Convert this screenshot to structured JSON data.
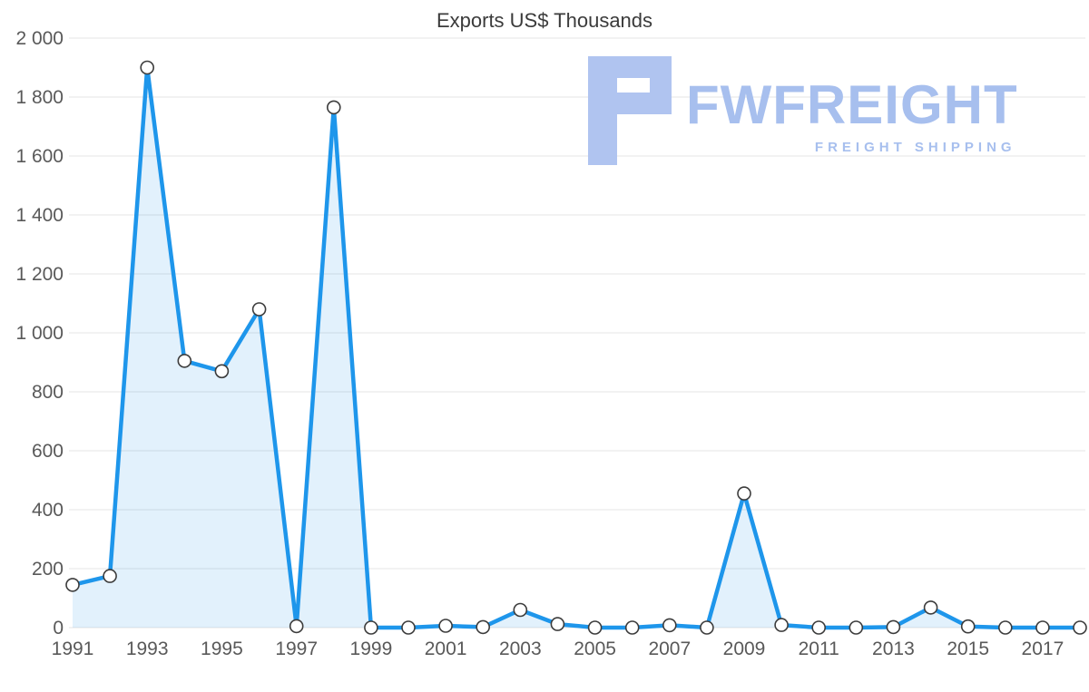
{
  "chart_data": {
    "type": "area",
    "title": "Exports US$ Thousands",
    "x": [
      1991,
      1992,
      1993,
      1994,
      1995,
      1996,
      1997,
      1998,
      1999,
      2000,
      2001,
      2002,
      2003,
      2004,
      2005,
      2006,
      2007,
      2008,
      2009,
      2010,
      2011,
      2012,
      2013,
      2014,
      2015,
      2016,
      2017,
      2018
    ],
    "series": [
      {
        "name": "Exports US$ Thousands",
        "values": [
          145,
          175,
          1900,
          905,
          870,
          1080,
          5,
          1765,
          0,
          0,
          6,
          2,
          60,
          12,
          0,
          0,
          8,
          0,
          455,
          9,
          0,
          0,
          2,
          68,
          4,
          0,
          0,
          0
        ]
      }
    ],
    "ylim": [
      0,
      2000
    ],
    "ytick_step": 200,
    "ytick_labels": [
      "0",
      "200",
      "400",
      "600",
      "800",
      "1 000",
      "1 200",
      "1 400",
      "1 600",
      "1 800",
      "2 000"
    ],
    "xticks": [
      1991,
      1993,
      1995,
      1997,
      1999,
      2001,
      2003,
      2005,
      2007,
      2009,
      2011,
      2013,
      2015,
      2017
    ],
    "grid": true,
    "legend": "none",
    "colors": {
      "line": "#1e96eb",
      "area": "#1e96eb",
      "marker_fill": "#ffffff",
      "marker_stroke": "#3c3c3c",
      "grid": "#e4e4e4",
      "axis_text": "#595959"
    }
  },
  "brand": {
    "name": "FWFREIGHT",
    "tagline": "FREIGHT SHIPPING",
    "color": "#a7bfee"
  }
}
